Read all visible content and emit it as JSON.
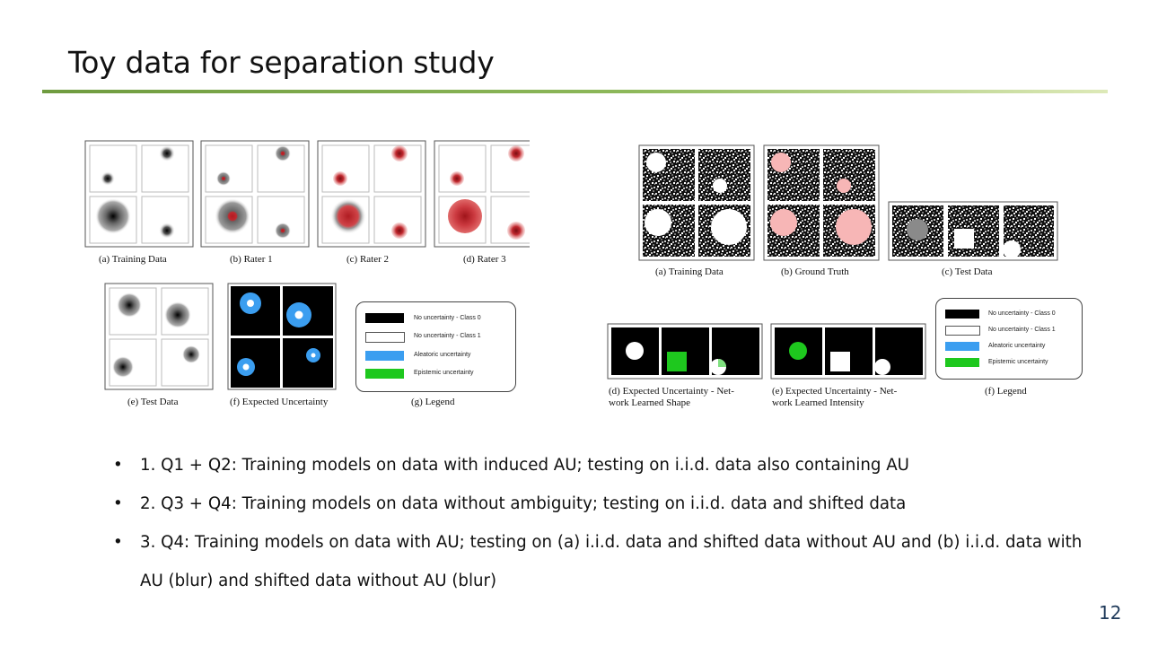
{
  "slide": {
    "title": "Toy data for separation study",
    "page_number": "12"
  },
  "left_figure": {
    "captions": {
      "a": "(a) Training Data",
      "b": "(b) Rater 1",
      "c": "(c) Rater 2",
      "d": "(d) Rater 3",
      "e": "(e) Test Data",
      "f": "(f) Expected Uncertainty",
      "g": "(g) Legend"
    },
    "legend": [
      "No uncertainty - Class 0",
      "No uncertainty - Class 1",
      "Aleatoric uncertainty",
      "Epistemic uncertainty"
    ]
  },
  "right_figure": {
    "captions": {
      "a": "(a) Training Data",
      "b": "(b) Ground Truth",
      "c": "(c) Test Data",
      "d1": "(d) Expected Uncertainty - Net-",
      "d2": "work Learned Shape",
      "e1": "(e) Expected Uncertainty - Net-",
      "e2": "work Learned Intensity",
      "f": "(f) Legend"
    },
    "legend": [
      "No uncertainty - Class 0",
      "No uncertainty - Class 1",
      "Aleatoric uncertainty",
      "Epistemic uncertainty"
    ]
  },
  "colors": {
    "aleatoric": "#3b9ef0",
    "epistemic": "#1ec81e",
    "rater_red": "#c0282e",
    "gt_pink": "#f7b6b6",
    "rule_green": "#7fab4c"
  },
  "bullets": [
    "1. Q1 + Q2: Training models on data with induced AU; testing on i.i.d. data also containing AU",
    "2. Q3 + Q4: Training models on data without ambiguity; testing on i.i.d. data and shifted data",
    "3. Q4: Training models on data with AU; testing on (a) i.i.d. data and shifted data without AU and (b) i.i.d. data with AU (blur) and shifted data without AU (blur)"
  ]
}
